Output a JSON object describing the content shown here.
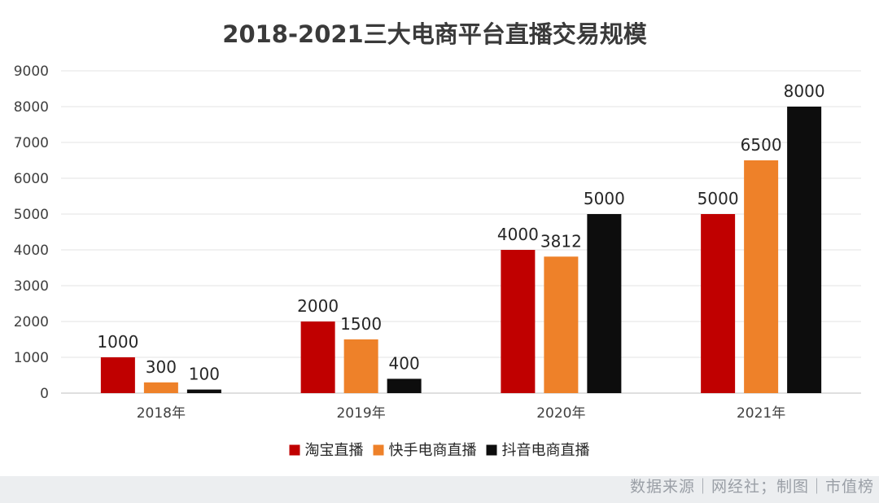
{
  "chart_data": {
    "type": "bar",
    "title": "2018-2021三大电商平台直播交易规模",
    "categories": [
      "2018年",
      "2019年",
      "2020年",
      "2021年"
    ],
    "series": [
      {
        "name": "淘宝直播",
        "color": "#c00000",
        "values": [
          1000,
          2000,
          4000,
          5000
        ]
      },
      {
        "name": "快手电商直播",
        "color": "#ee8129",
        "values": [
          300,
          1500,
          3812,
          6500
        ]
      },
      {
        "name": "抖音电商直播",
        "color": "#0d0d0d",
        "values": [
          100,
          400,
          5000,
          8000
        ]
      }
    ],
    "ylim": [
      0,
      9000
    ],
    "yticks": [
      0,
      1000,
      2000,
      3000,
      4000,
      5000,
      6000,
      7000,
      8000,
      9000
    ],
    "grid": true,
    "legend_position": "bottom-center"
  },
  "footer": {
    "source": "数据来源｜网经社；制图｜市值榜"
  }
}
